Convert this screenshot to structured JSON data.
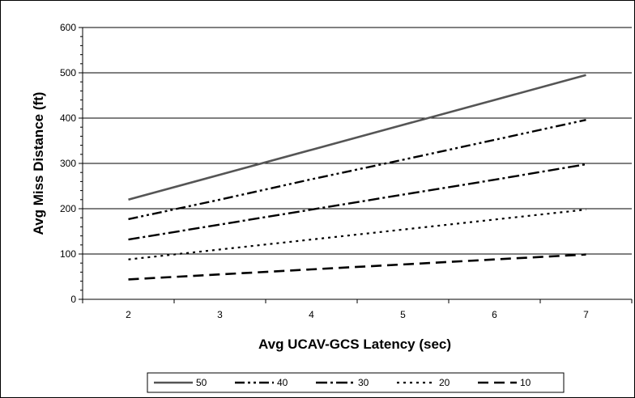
{
  "chart_data": {
    "type": "line",
    "title": "",
    "xlabel": "Avg UCAV-GCS Latency (sec)",
    "ylabel": "Avg Miss Distance (ft)",
    "x": [
      2,
      3,
      4,
      5,
      6,
      7
    ],
    "xlim": [
      1.5,
      7.5
    ],
    "ylim": [
      0,
      600
    ],
    "yticks": [
      0,
      100,
      200,
      300,
      400,
      500,
      600
    ],
    "xticks": [
      2,
      3,
      4,
      5,
      6,
      7
    ],
    "grid": "horizontal major",
    "legend_position": "bottom",
    "series": [
      {
        "name": "50",
        "values": [
          220,
          275,
          330,
          385,
          440,
          495
        ],
        "color": "#555555",
        "style": "solid"
      },
      {
        "name": "40",
        "values": [
          177,
          220,
          265,
          308,
          352,
          396
        ],
        "color": "#000000",
        "style": "dash-dot-dot"
      },
      {
        "name": "30",
        "values": [
          132,
          165,
          198,
          231,
          264,
          298
        ],
        "color": "#000000",
        "style": "dash-dot"
      },
      {
        "name": "20",
        "values": [
          88,
          110,
          132,
          154,
          176,
          198
        ],
        "color": "#000000",
        "style": "dotted"
      },
      {
        "name": "10",
        "values": [
          44,
          55,
          66,
          77,
          88,
          99
        ],
        "color": "#000000",
        "style": "dashed"
      }
    ]
  }
}
